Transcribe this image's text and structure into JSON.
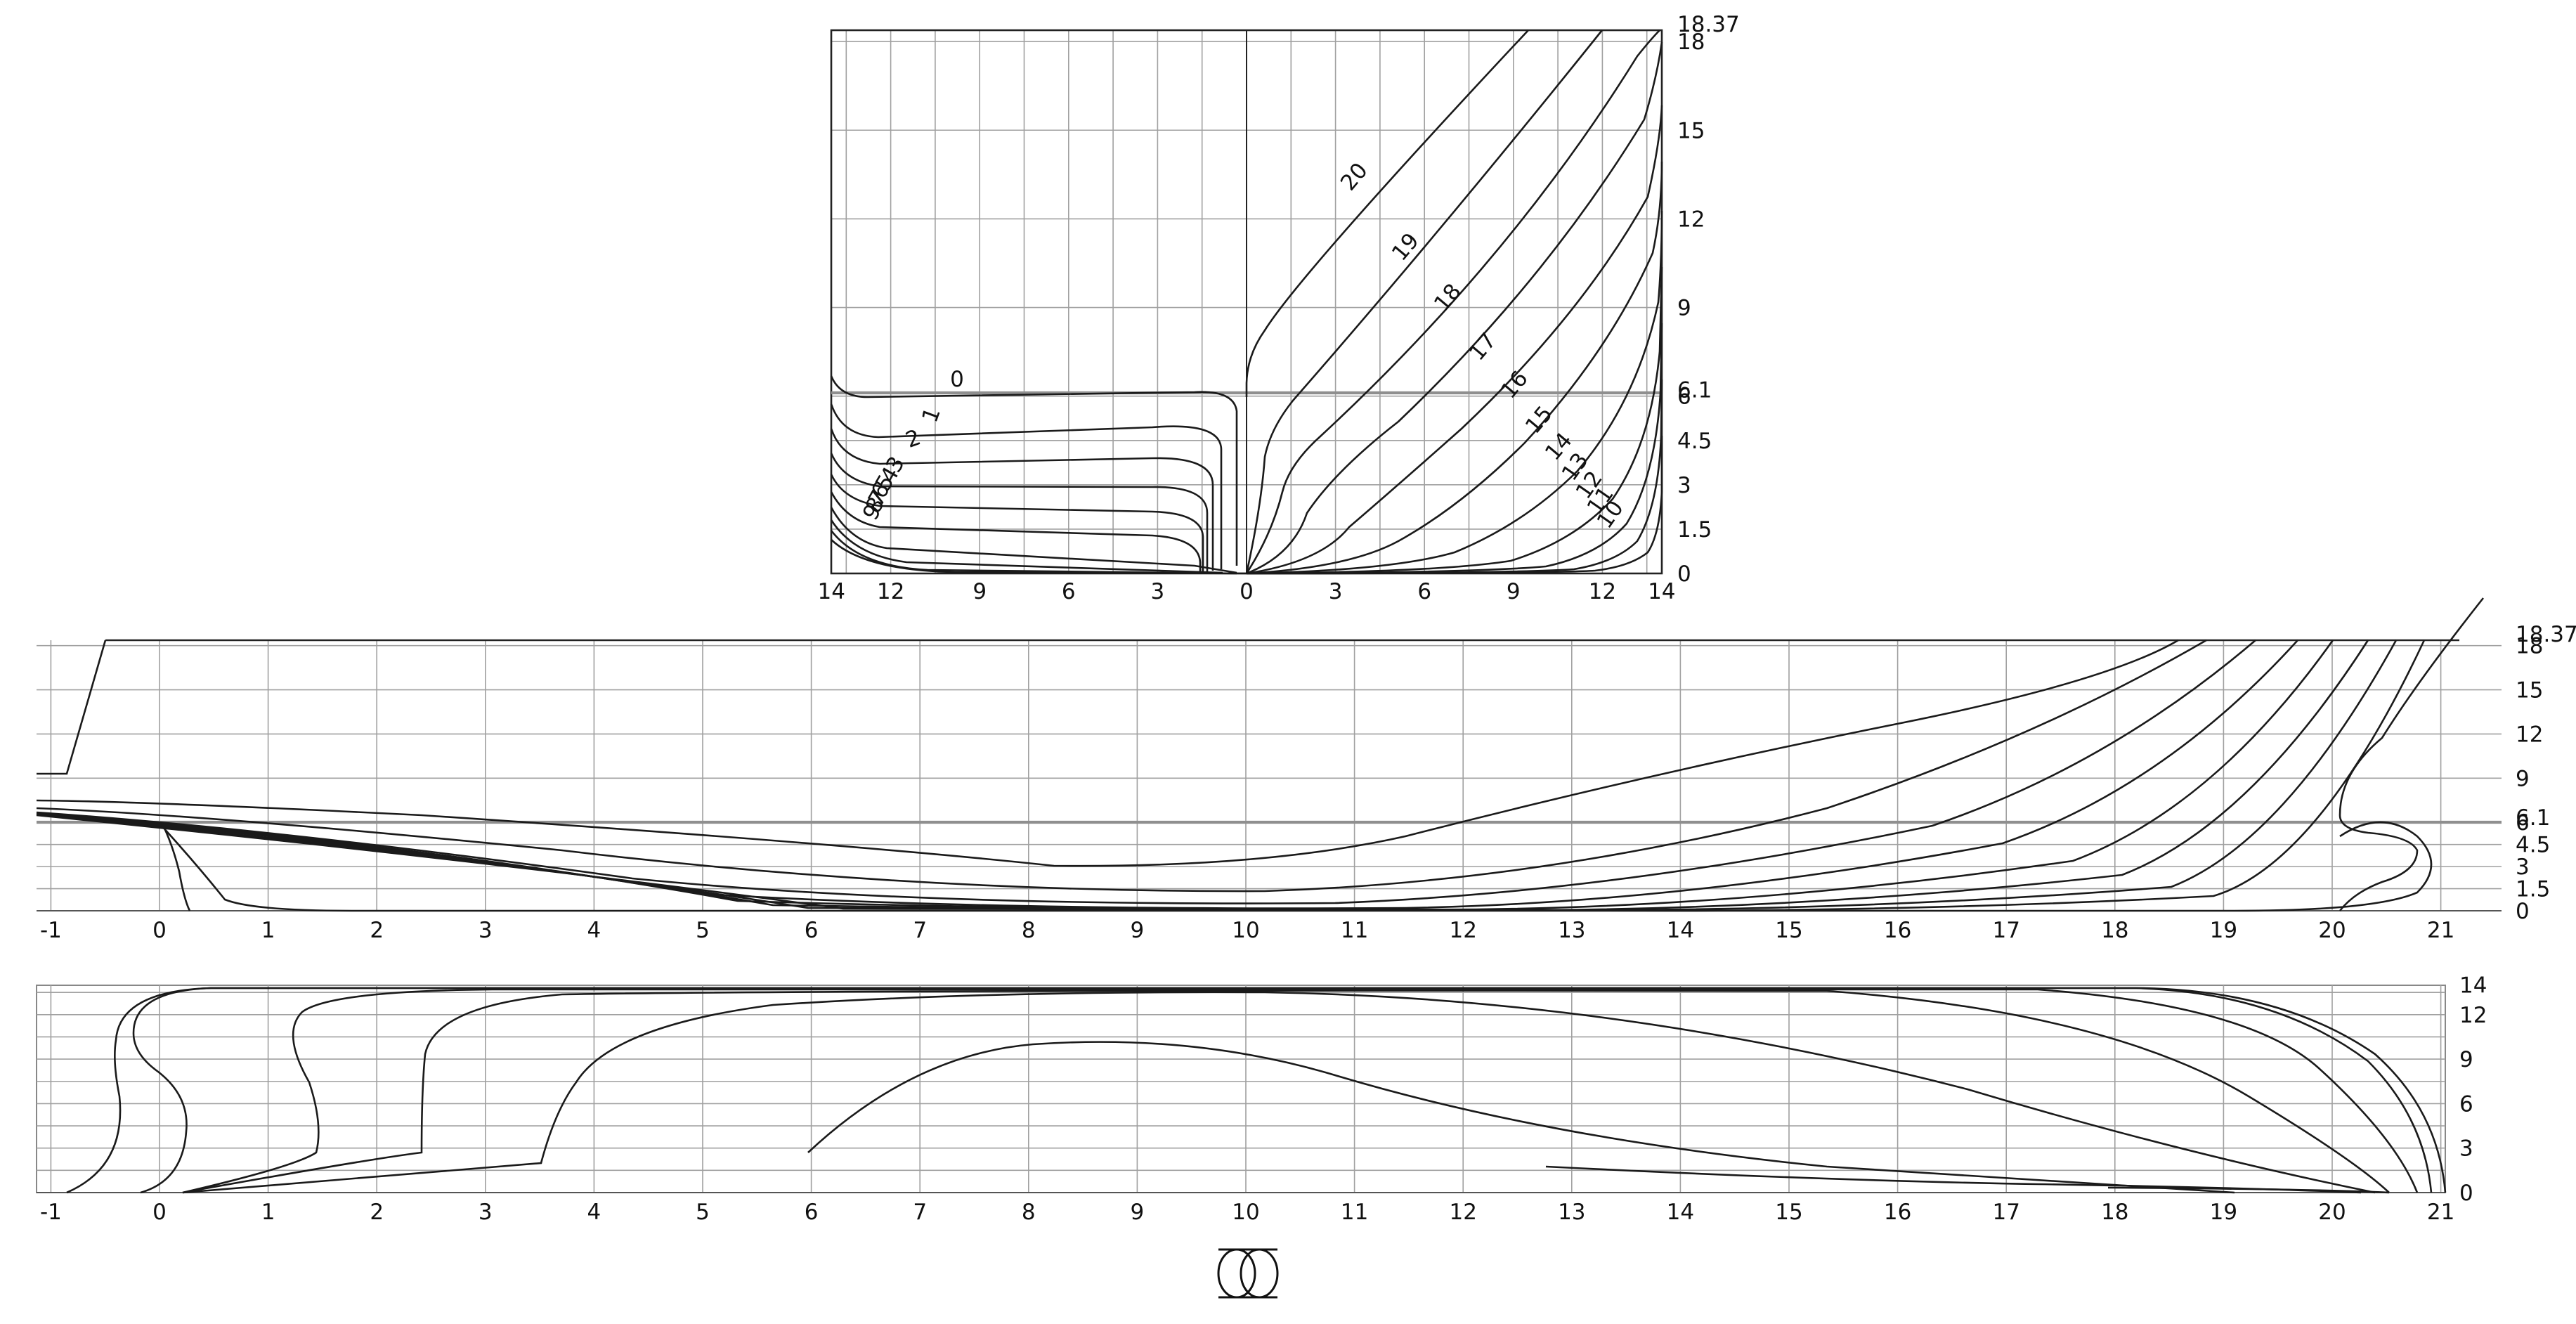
{
  "body_plan": {
    "x_ticks": [
      "14",
      "12",
      "9",
      "6",
      "3",
      "0",
      "3",
      "6",
      "9",
      "12",
      "14"
    ],
    "y_ticks": [
      "0",
      "1.5",
      "3",
      "4.5",
      "6",
      "9",
      "12",
      "15",
      "18"
    ],
    "special_y_labels": [
      "6.1",
      "18.37"
    ],
    "station_labels": [
      "0",
      "1",
      "2",
      "3",
      "4",
      "5",
      "6",
      "7",
      "8",
      "9",
      "10",
      "11",
      "12",
      "13",
      "14",
      "15",
      "16",
      "17",
      "18",
      "19",
      "20"
    ]
  },
  "profile": {
    "x_ticks": [
      "-1",
      "0",
      "1",
      "2",
      "3",
      "4",
      "5",
      "6",
      "7",
      "8",
      "9",
      "10",
      "11",
      "12",
      "13",
      "14",
      "15",
      "16",
      "17",
      "18",
      "19",
      "20",
      "21"
    ],
    "y_ticks": [
      "0",
      "1.5",
      "3",
      "4.5",
      "6",
      "9",
      "12",
      "15",
      "18"
    ],
    "special_y_labels": [
      "6.1",
      "18.37"
    ]
  },
  "plan": {
    "x_ticks": [
      "-1",
      "0",
      "1",
      "2",
      "3",
      "4",
      "5",
      "6",
      "7",
      "8",
      "9",
      "10",
      "11",
      "12",
      "13",
      "14",
      "15",
      "16",
      "17",
      "18",
      "19",
      "20",
      "21"
    ],
    "y_ticks": [
      "0",
      "3",
      "6",
      "9",
      "12",
      "14"
    ]
  },
  "symbol": {
    "name": "midship-section-symbol"
  }
}
